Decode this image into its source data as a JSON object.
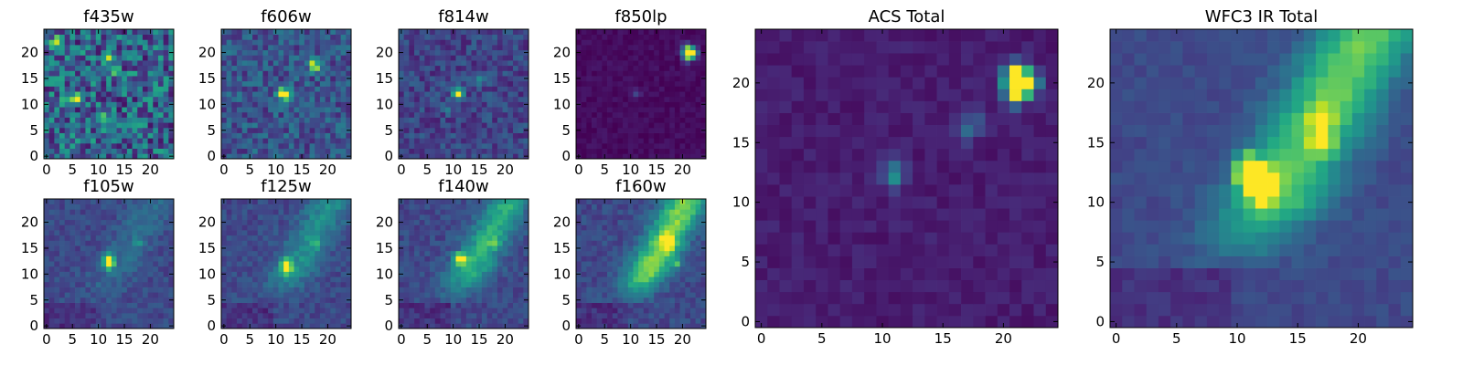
{
  "chart_data": [
    {
      "id": "f435w",
      "type": "heatmap",
      "title": "f435w",
      "grid_size": 25,
      "xlim": [
        -0.5,
        24.5
      ],
      "ylim": [
        -0.5,
        24.5
      ],
      "xticks": [
        0,
        5,
        10,
        15,
        20
      ],
      "yticks": [
        0,
        5,
        10,
        15,
        20
      ],
      "colormap": "viridis",
      "pattern": "noise",
      "noise_level": 0.45,
      "base_level": 0.32,
      "sources": [
        [
          2,
          22,
          0.6
        ],
        [
          12,
          19,
          0.5
        ],
        [
          13,
          17,
          0.45
        ],
        [
          6,
          11,
          0.4
        ],
        [
          11,
          8,
          0.35
        ],
        [
          4,
          11,
          0.35
        ],
        [
          21,
          13,
          0.5
        ],
        [
          15,
          13,
          0.35
        ]
      ]
    },
    {
      "id": "f606w",
      "type": "heatmap",
      "title": "f606w",
      "grid_size": 25,
      "xlim": [
        -0.5,
        24.5
      ],
      "ylim": [
        -0.5,
        24.5
      ],
      "xticks": [
        0,
        5,
        10,
        15,
        20
      ],
      "yticks": [
        0,
        5,
        10,
        15,
        20
      ],
      "colormap": "viridis",
      "pattern": "noise",
      "noise_level": 0.26,
      "base_level": 0.26,
      "sources": [
        [
          11,
          12,
          0.75
        ],
        [
          12,
          12,
          0.65
        ],
        [
          17,
          18,
          0.7
        ],
        [
          18,
          17,
          0.5
        ]
      ]
    },
    {
      "id": "f814w",
      "type": "heatmap",
      "title": "f814w",
      "grid_size": 25,
      "xlim": [
        -0.5,
        24.5
      ],
      "ylim": [
        -0.5,
        24.5
      ],
      "xticks": [
        0,
        5,
        10,
        15,
        20
      ],
      "yticks": [
        0,
        5,
        10,
        15,
        20
      ],
      "colormap": "viridis",
      "pattern": "noise",
      "noise_level": 0.2,
      "base_level": 0.2,
      "sources": [
        [
          11,
          12,
          0.8
        ],
        [
          15,
          15,
          0.25
        ],
        [
          9,
          9,
          0.2
        ]
      ]
    },
    {
      "id": "f850lp",
      "type": "heatmap",
      "title": "f850lp",
      "grid_size": 25,
      "xlim": [
        -0.5,
        24.5
      ],
      "ylim": [
        -0.5,
        24.5
      ],
      "xticks": [
        0,
        5,
        10,
        15,
        20
      ],
      "yticks": [
        0,
        5,
        10,
        15,
        20
      ],
      "colormap": "viridis",
      "pattern": "noise",
      "noise_level": 0.06,
      "base_level": 0.03,
      "sources": [
        [
          21,
          20,
          0.95
        ],
        [
          22,
          20,
          0.85
        ],
        [
          21,
          21,
          0.4
        ],
        [
          21,
          19,
          0.4
        ],
        [
          11,
          12,
          0.15
        ]
      ]
    },
    {
      "id": "f105w",
      "type": "heatmap",
      "title": "f105w",
      "grid_size": 25,
      "xlim": [
        -0.5,
        24.5
      ],
      "ylim": [
        -0.5,
        24.5
      ],
      "xticks": [
        0,
        5,
        10,
        15,
        20
      ],
      "yticks": [
        0,
        5,
        10,
        15,
        20
      ],
      "colormap": "viridis",
      "pattern": "diffuse",
      "noise_level": 0.12,
      "base_level": 0.22,
      "diffuse_strength": 0.15,
      "sources": [
        [
          12,
          12,
          0.8
        ],
        [
          12,
          13,
          0.6
        ],
        [
          18,
          16,
          0.2
        ]
      ]
    },
    {
      "id": "f125w",
      "type": "heatmap",
      "title": "f125w",
      "grid_size": 25,
      "xlim": [
        -0.5,
        24.5
      ],
      "ylim": [
        -0.5,
        24.5
      ],
      "xticks": [
        0,
        5,
        10,
        15,
        20
      ],
      "yticks": [
        0,
        5,
        10,
        15,
        20
      ],
      "colormap": "viridis",
      "pattern": "diffuse",
      "noise_level": 0.12,
      "base_level": 0.22,
      "diffuse_strength": 0.3,
      "sources": [
        [
          12,
          12,
          0.75
        ],
        [
          12,
          11,
          0.5
        ],
        [
          18,
          16,
          0.25
        ]
      ]
    },
    {
      "id": "f140w",
      "type": "heatmap",
      "title": "f140w",
      "grid_size": 25,
      "xlim": [
        -0.5,
        24.5
      ],
      "ylim": [
        -0.5,
        24.5
      ],
      "xticks": [
        0,
        5,
        10,
        15,
        20
      ],
      "yticks": [
        0,
        5,
        10,
        15,
        20
      ],
      "colormap": "viridis",
      "pattern": "diffuse",
      "noise_level": 0.12,
      "base_level": 0.22,
      "diffuse_strength": 0.45,
      "sources": [
        [
          11,
          13,
          0.75
        ],
        [
          12,
          13,
          0.5
        ],
        [
          18,
          16,
          0.3
        ]
      ]
    },
    {
      "id": "f160w",
      "type": "heatmap",
      "title": "f160w",
      "grid_size": 25,
      "xlim": [
        -0.5,
        24.5
      ],
      "ylim": [
        -0.5,
        24.5
      ],
      "xticks": [
        0,
        5,
        10,
        15,
        20
      ],
      "yticks": [
        0,
        5,
        10,
        15,
        20
      ],
      "colormap": "viridis",
      "pattern": "diffuse",
      "noise_level": 0.12,
      "base_level": 0.22,
      "diffuse_strength": 0.65,
      "sources": [
        [
          17,
          17,
          0.5
        ],
        [
          18,
          16,
          0.45
        ],
        [
          17,
          15,
          0.4
        ],
        [
          19,
          12,
          0.35
        ]
      ]
    },
    {
      "id": "acs_total",
      "type": "heatmap",
      "title": "ACS Total",
      "grid_size": 25,
      "xlim": [
        -0.5,
        24.5
      ],
      "ylim": [
        -0.5,
        24.5
      ],
      "xticks": [
        0,
        5,
        10,
        15,
        20
      ],
      "yticks": [
        0,
        5,
        10,
        15,
        20
      ],
      "colormap": "viridis",
      "pattern": "noise",
      "noise_level": 0.07,
      "base_level": 0.08,
      "sources": [
        [
          21,
          20,
          0.95
        ],
        [
          22,
          20,
          0.9
        ],
        [
          21,
          21,
          0.5
        ],
        [
          21,
          19,
          0.5
        ],
        [
          11,
          12,
          0.3
        ],
        [
          11,
          13,
          0.22
        ],
        [
          17,
          16,
          0.22
        ],
        [
          18,
          17,
          0.18
        ]
      ]
    },
    {
      "id": "wfc3_ir_total",
      "type": "heatmap",
      "title": "WFC3 IR Total",
      "grid_size": 25,
      "xlim": [
        -0.5,
        24.5
      ],
      "ylim": [
        -0.5,
        24.5
      ],
      "xticks": [
        0,
        5,
        10,
        15,
        20
      ],
      "yticks": [
        0,
        5,
        10,
        15,
        20
      ],
      "colormap": "viridis",
      "pattern": "diffuse",
      "noise_level": 0.07,
      "base_level": 0.22,
      "diffuse_strength": 0.6,
      "sources": [
        [
          11,
          12,
          0.95
        ],
        [
          12,
          12,
          0.9
        ],
        [
          11,
          13,
          0.85
        ],
        [
          12,
          11,
          0.7
        ],
        [
          17,
          17,
          0.45
        ],
        [
          17,
          15,
          0.4
        ]
      ]
    }
  ]
}
